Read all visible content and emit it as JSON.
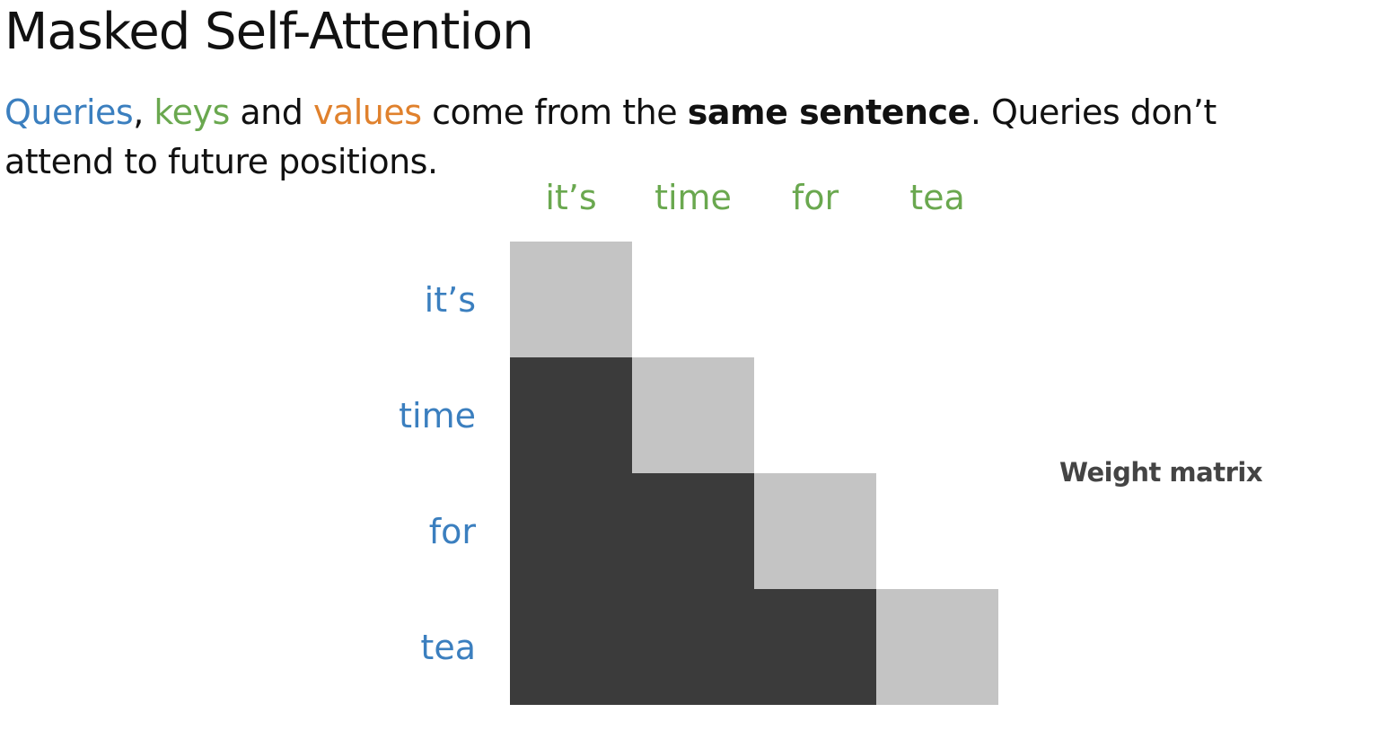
{
  "title": "Masked Self-Attention",
  "subtitle": {
    "queries": "Queries",
    "comma": ",",
    "keys": "keys",
    "and": "and",
    "values": "values",
    "mid": "come from the",
    "bold": "same sentence",
    "tail": ". Queries don’t",
    "line2": "attend to future positions."
  },
  "colors": {
    "queries": "#3b7fbf",
    "keys": "#6aa84f",
    "values": "#e0812d",
    "diagonal_cell": "#c4c4c4",
    "lower_cell": "#3b3b3b"
  },
  "matrix": {
    "column_tokens": [
      "it’s",
      "time",
      "for",
      "tea"
    ],
    "row_tokens": [
      "it’s",
      "time",
      "for",
      "tea"
    ],
    "cells": [
      [
        "diagonal",
        "masked",
        "masked",
        "masked"
      ],
      [
        "lower",
        "diagonal",
        "masked",
        "masked"
      ],
      [
        "lower",
        "lower",
        "diagonal",
        "masked"
      ],
      [
        "lower",
        "lower",
        "lower",
        "diagonal"
      ]
    ]
  },
  "caption": "Weight matrix"
}
